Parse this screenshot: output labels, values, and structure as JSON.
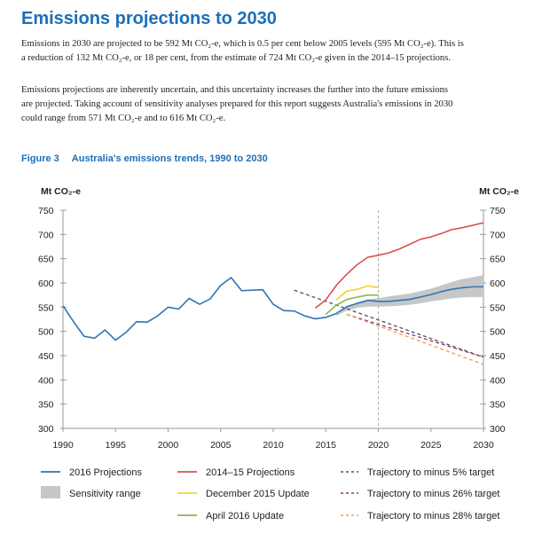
{
  "heading": "Emissions projections to 2030",
  "paragraphs": {
    "p1_lines": [
      "Emissions in 2030 are projected to be 592 Mt CO₂-e, which is 0.5 per cent below 2005 levels (595 Mt CO₂-e). This is",
      "a reduction of 132 Mt CO₂-e, or 18 per cent, from the estimate of 724 Mt CO₂-e given in the 2014–15 projections."
    ],
    "p2_lines": [
      "Emissions projections are inherently uncertain, and this uncertainty increases the further into the future emissions",
      "are projected. Taking account of sensitivity analyses prepared for this report suggests Australia's emissions in 2030",
      "could range from 571 Mt CO₂-e and to 616 Mt CO₂-e."
    ]
  },
  "figure": {
    "label": "Figure 3",
    "title": "Australia's emissions trends, 1990 to 2030"
  },
  "chart_data": {
    "type": "line",
    "title": "Australia's emissions trends, 1990 to 2030",
    "ylabel_left": "Mt CO₂-e",
    "ylabel_right": "Mt CO₂-e",
    "xlim": [
      1990,
      2030
    ],
    "ylim": [
      300,
      750
    ],
    "x_ticks": [
      1990,
      1995,
      2000,
      2005,
      2010,
      2015,
      2020,
      2025,
      2030
    ],
    "y_ticks": [
      300,
      350,
      400,
      450,
      500,
      550,
      600,
      650,
      700,
      750
    ],
    "divider_year": 2020,
    "legend_position": "bottom",
    "sensitivity_range": {
      "name": "Sensitivity range",
      "color": "#c7c7c7",
      "x": [
        2016,
        2017,
        2018,
        2019,
        2020,
        2021,
        2022,
        2023,
        2024,
        2025,
        2026,
        2027,
        2028,
        2029,
        2030
      ],
      "lo": [
        532,
        543,
        549,
        551,
        551,
        552,
        553,
        555,
        558,
        562,
        565,
        568,
        570,
        571,
        571
      ],
      "hi": [
        535,
        550,
        560,
        566,
        569,
        572,
        575,
        578,
        583,
        588,
        595,
        602,
        608,
        612,
        616
      ]
    },
    "series": [
      {
        "name": "2016 Projections",
        "color": "#2e75b6",
        "style": "solid",
        "x": [
          1990,
          1991,
          1992,
          1993,
          1994,
          1995,
          1996,
          1997,
          1998,
          1999,
          2000,
          2001,
          2002,
          2003,
          2004,
          2005,
          2006,
          2007,
          2008,
          2009,
          2010,
          2011,
          2012,
          2013,
          2014,
          2015,
          2016,
          2017,
          2018,
          2019,
          2020,
          2021,
          2022,
          2023,
          2024,
          2025,
          2026,
          2027,
          2028,
          2029,
          2030
        ],
        "values": [
          553,
          520,
          490,
          486,
          503,
          482,
          498,
          520,
          519,
          532,
          550,
          546,
          568,
          556,
          567,
          595,
          611,
          584,
          585,
          586,
          556,
          543,
          542,
          532,
          526,
          529,
          537,
          551,
          558,
          564,
          562,
          562,
          564,
          566,
          571,
          576,
          582,
          587,
          590,
          592,
          592
        ]
      },
      {
        "name": "2014–15 Projections",
        "color": "#d9534f",
        "style": "solid",
        "x": [
          2014,
          2015,
          2016,
          2017,
          2018,
          2019,
          2020,
          2021,
          2022,
          2023,
          2024,
          2025,
          2026,
          2027,
          2028,
          2029,
          2030
        ],
        "values": [
          548,
          565,
          595,
          618,
          638,
          653,
          657,
          662,
          670,
          680,
          690,
          695,
          702,
          710,
          714,
          719,
          724
        ]
      },
      {
        "name": "December 2015 Update",
        "color": "#f2d230",
        "style": "solid",
        "x": [
          2016,
          2017,
          2018,
          2019,
          2020
        ],
        "values": [
          565,
          583,
          587,
          594,
          590
        ]
      },
      {
        "name": "April 2016 Update",
        "color": "#8db350",
        "style": "solid",
        "x": [
          2015,
          2016,
          2017,
          2018,
          2019,
          2020
        ],
        "values": [
          535,
          554,
          566,
          571,
          575,
          575
        ]
      },
      {
        "name": "Trajectory to minus 5% target",
        "color": "#555555",
        "style": "dashed",
        "x": [
          2012,
          2030
        ],
        "values": [
          585,
          447
        ]
      },
      {
        "name": "Trajectory to minus 26% target",
        "color": "#8a3d6c",
        "style": "dashed",
        "x": [
          2017,
          2030
        ],
        "values": [
          535,
          447
        ]
      },
      {
        "name": "Trajectory to minus 28% target",
        "color": "#f0a04b",
        "style": "dashed",
        "x": [
          2017,
          2030
        ],
        "values": [
          535,
          432
        ]
      }
    ]
  }
}
